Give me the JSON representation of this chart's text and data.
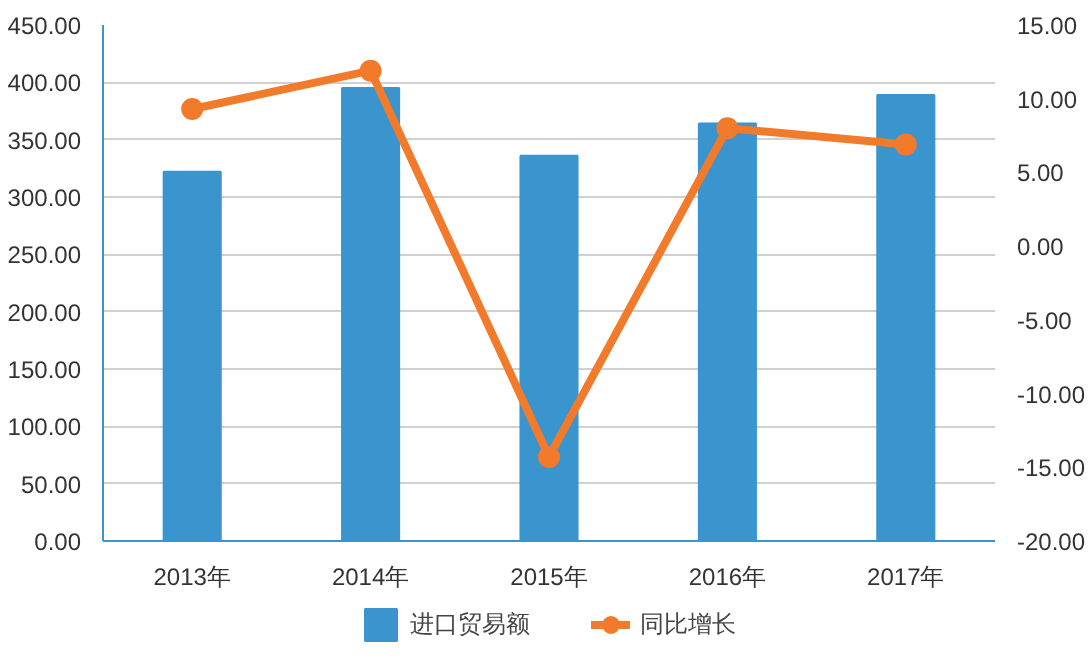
{
  "chart_data": {
    "type": "bar",
    "categories": [
      "2013年",
      "2014年",
      "2015年",
      "2016年",
      "2017年"
    ],
    "series": [
      {
        "name": "进口贸易额",
        "color": "#3a95cf",
        "values": [
          322,
          395,
          336,
          364,
          389
        ]
      },
      {
        "name": "同比增长",
        "type": "line",
        "axis": "y2",
        "color": "#f27a2b",
        "values": [
          9.3,
          11.9,
          -14.3,
          8.0,
          6.9
        ],
        "marker": "circle"
      }
    ],
    "ylim": [
      0,
      450
    ],
    "yticks": [
      {
        "value": 0,
        "label": "0.00"
      },
      {
        "value": 50,
        "label": "50.00"
      },
      {
        "value": 100,
        "label": "100.00"
      },
      {
        "value": 150,
        "label": "150.00"
      },
      {
        "value": 200,
        "label": "200.00"
      },
      {
        "value": 250,
        "label": "250.00"
      },
      {
        "value": 300,
        "label": "300.00"
      },
      {
        "value": 350,
        "label": "350.00"
      },
      {
        "value": 400,
        "label": "400.00"
      },
      {
        "value": 450,
        "label": "450.00"
      }
    ],
    "y2lim": [
      -20,
      15
    ],
    "y2ticks": [
      {
        "value": -20,
        "label": "-20.00"
      },
      {
        "value": -15,
        "label": "-15.00"
      },
      {
        "value": -10,
        "label": "-10.00"
      },
      {
        "value": -5,
        "label": "-5.00"
      },
      {
        "value": 0,
        "label": "0.00"
      },
      {
        "value": 5,
        "label": "5.00"
      },
      {
        "value": 10,
        "label": "10.00"
      },
      {
        "value": 15,
        "label": "15.00"
      }
    ],
    "grid": "y",
    "legend": "bottom"
  }
}
